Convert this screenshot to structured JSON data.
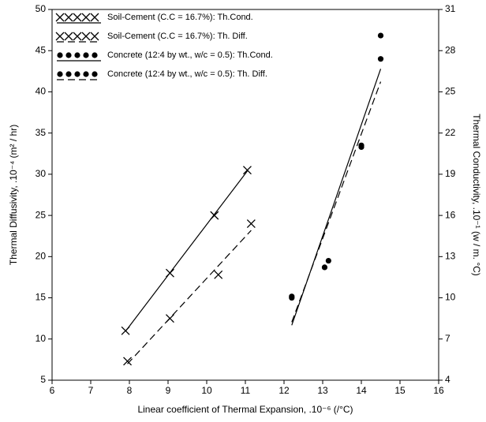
{
  "chart_data": {
    "type": "scatter",
    "xlabel": "Linear coefficient of Thermal Expansion, .10⁻⁶ (/°C)",
    "ylabel": "Thermal Diffusivity, .10⁻⁴ (m² / hr)",
    "y2label": "Thermal Conductivity, .10⁻¹ (w / m. °C)",
    "xlim": [
      6,
      16
    ],
    "xticks": [
      6,
      7,
      8,
      9,
      10,
      11,
      12,
      13,
      14,
      15,
      16
    ],
    "ylim": [
      5,
      50
    ],
    "yticks": [
      5,
      10,
      15,
      20,
      25,
      30,
      35,
      40,
      45,
      50
    ],
    "y2lim": [
      4,
      31
    ],
    "y2ticks": [
      4,
      7,
      10,
      13,
      16,
      19,
      22,
      25,
      28,
      31
    ],
    "series": [
      {
        "name": "Soil-Cement (C.C = 16.7%): Th.Cond.",
        "color": "#000000",
        "marker": "x",
        "line": "solid",
        "axis": "y2",
        "x": [
          7.9,
          9.05,
          10.2,
          11.05
        ],
        "values": [
          7.6,
          11.8,
          16.0,
          19.3
        ]
      },
      {
        "name": "Soil-Cement (C.C = 16.7%): Th. Diff.",
        "color": "#000000",
        "marker": "x",
        "line": "dashed",
        "axis": "y",
        "x": [
          7.95,
          9.05,
          10.3,
          11.15
        ],
        "values": [
          7.3,
          12.5,
          17.8,
          24
        ]
      },
      {
        "name": "Concrete (12:4 by wt., w/c = 0.5): Th.Cond.",
        "color": "#000000",
        "marker": "dot",
        "line": "solid",
        "axis": "y2",
        "x": [
          12.2,
          13.15,
          14.0,
          14.5
        ],
        "values": [
          10.1,
          12.7,
          21.1,
          29.1
        ]
      },
      {
        "name": "Concrete (12:4 by wt., w/c = 0.5): Th. Diff.",
        "color": "#000000",
        "marker": "dot",
        "line": "dashed",
        "axis": "y",
        "x": [
          12.2,
          13.05,
          14.0,
          14.5
        ],
        "values": [
          15,
          18.7,
          33.3,
          44
        ]
      }
    ]
  }
}
